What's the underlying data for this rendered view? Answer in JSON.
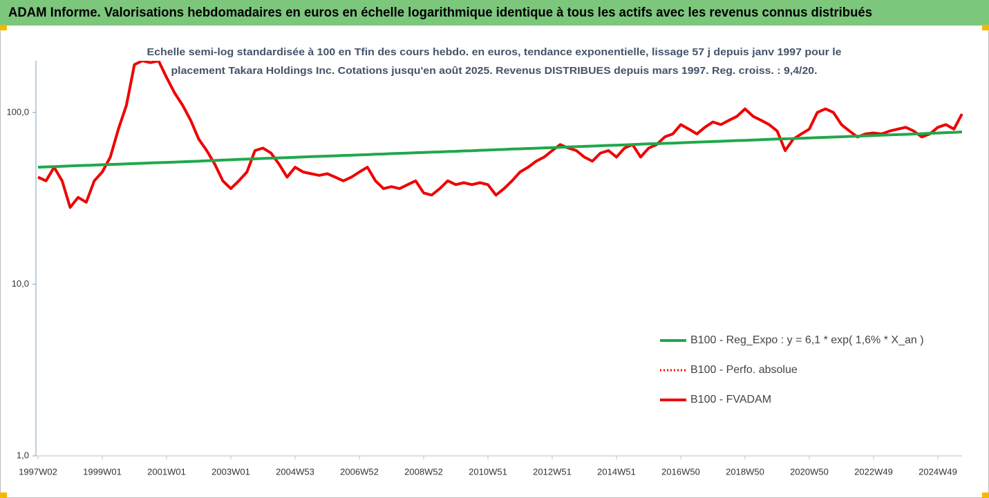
{
  "chart_data": {
    "type": "line",
    "header": "ADAM Informe. Valorisations hebdomadaires en euros en échelle logarithmique identique à tous les actifs avec les revenus connus distribués",
    "title": [
      "Echelle semi-log standardisée à 100 en Tfin des cours hebdo. en euros, tendance exponentielle, lissage 57 j depuis janv 1997 pour le",
      "placement Takara Holdings Inc. Cotations jusqu'en août 2025.  Revenus DISTRIBUES depuis mars 1997. Reg. croiss. : 9,4/20."
    ],
    "log_scale": true,
    "grid": false,
    "legend": "right",
    "ylim": [
      1,
      200
    ],
    "yticks": [
      {
        "value": 1,
        "label": "1,0"
      },
      {
        "value": 10,
        "label": "10,0"
      },
      {
        "value": 100,
        "label": "100,0"
      }
    ],
    "categories": [
      "1997W02",
      null,
      null,
      null,
      null,
      null,
      null,
      null,
      "1999W01",
      null,
      null,
      null,
      null,
      null,
      null,
      null,
      "2001W01",
      null,
      null,
      null,
      null,
      null,
      null,
      null,
      "2003W01",
      null,
      null,
      null,
      null,
      null,
      null,
      null,
      "2004W53",
      null,
      null,
      null,
      null,
      null,
      null,
      null,
      "2006W52",
      null,
      null,
      null,
      null,
      null,
      null,
      null,
      "2008W52",
      null,
      null,
      null,
      null,
      null,
      null,
      null,
      "2010W51",
      null,
      null,
      null,
      null,
      null,
      null,
      null,
      "2012W51",
      null,
      null,
      null,
      null,
      null,
      null,
      null,
      "2014W51",
      null,
      null,
      null,
      null,
      null,
      null,
      null,
      "2016W50",
      null,
      null,
      null,
      null,
      null,
      null,
      null,
      "2018W50",
      null,
      null,
      null,
      null,
      null,
      null,
      null,
      "2020W50",
      null,
      null,
      null,
      null,
      null,
      null,
      null,
      "2022W49",
      null,
      null,
      null,
      null,
      null,
      null,
      null,
      "2024W49",
      null,
      null,
      null
    ],
    "series": [
      {
        "name": "B100 - Reg_Expo : y = 6,1 * exp( 1,6% *  X_an )",
        "color": "#1fa84a",
        "style": "solid",
        "width": 4,
        "values": [
          48.0,
          48.2,
          48.4,
          48.6,
          48.8,
          49.0,
          49.2,
          49.4,
          49.6,
          49.8,
          50.0,
          50.2,
          50.4,
          50.6,
          50.8,
          51.0,
          51.2,
          51.4,
          51.6,
          51.8,
          52.0,
          52.3,
          52.5,
          52.8,
          53.0,
          53.3,
          53.5,
          53.7,
          54.0,
          54.2,
          54.4,
          54.6,
          54.8,
          55.1,
          55.3,
          55.5,
          55.7,
          55.9,
          56.2,
          56.4,
          56.6,
          56.8,
          57.1,
          57.3,
          57.6,
          57.8,
          58.0,
          58.3,
          58.5,
          58.7,
          58.9,
          59.2,
          59.4,
          59.7,
          59.9,
          60.2,
          60.4,
          60.7,
          60.9,
          61.2,
          61.4,
          61.7,
          61.9,
          62.2,
          62.4,
          62.7,
          63.0,
          63.2,
          63.5,
          63.7,
          64.0,
          64.3,
          64.5,
          64.8,
          65.0,
          65.3,
          65.6,
          65.8,
          66.1,
          66.3,
          66.6,
          66.9,
          67.2,
          67.4,
          67.7,
          68.0,
          68.3,
          68.6,
          68.8,
          69.1,
          69.4,
          69.7,
          70.0,
          70.2,
          70.5,
          70.8,
          71.1,
          71.4,
          71.6,
          71.9,
          72.2,
          72.5,
          72.8,
          73.1,
          73.4,
          73.7,
          74.0,
          74.3,
          74.6,
          74.9,
          75.2,
          75.6,
          75.9,
          76.3,
          76.6,
          77.0
        ]
      },
      {
        "name": "B100 - Perfo. absolue",
        "color": "#ff0000",
        "style": "dotted",
        "width": 3,
        "values": [
          42,
          40,
          48,
          40,
          28,
          32,
          30,
          40,
          45,
          55,
          80,
          110,
          190,
          200,
          195,
          200,
          160,
          130,
          110,
          90,
          70,
          60,
          50,
          40,
          36,
          40,
          45,
          60,
          62,
          58,
          50,
          42,
          48,
          45,
          44,
          43,
          44,
          42,
          40,
          42,
          45,
          48,
          40,
          36,
          37,
          36,
          38,
          40,
          34,
          33,
          36,
          40,
          38,
          39,
          38,
          39,
          38,
          33,
          36,
          40,
          45,
          48,
          52,
          55,
          60,
          65,
          62,
          60,
          55,
          52,
          58,
          60,
          55,
          62,
          65,
          55,
          62,
          65,
          72,
          75,
          85,
          80,
          75,
          82,
          88,
          85,
          90,
          95,
          105,
          95,
          90,
          85,
          78,
          60,
          70,
          75,
          80,
          100,
          105,
          100,
          85,
          78,
          72,
          75,
          76,
          75,
          78,
          80,
          82,
          78,
          72,
          75,
          82,
          85,
          80,
          98
        ]
      },
      {
        "name": "B100 - FVADAM",
        "color": "#ee0000",
        "style": "solid",
        "width": 4,
        "values": [
          42,
          40,
          48,
          40,
          28,
          32,
          30,
          40,
          45,
          55,
          80,
          110,
          190,
          200,
          195,
          200,
          160,
          130,
          110,
          90,
          70,
          60,
          50,
          40,
          36,
          40,
          45,
          60,
          62,
          58,
          50,
          42,
          48,
          45,
          44,
          43,
          44,
          42,
          40,
          42,
          45,
          48,
          40,
          36,
          37,
          36,
          38,
          40,
          34,
          33,
          36,
          40,
          38,
          39,
          38,
          39,
          38,
          33,
          36,
          40,
          45,
          48,
          52,
          55,
          60,
          65,
          62,
          60,
          55,
          52,
          58,
          60,
          55,
          62,
          65,
          55,
          62,
          65,
          72,
          75,
          85,
          80,
          75,
          82,
          88,
          85,
          90,
          95,
          105,
          95,
          90,
          85,
          78,
          60,
          70,
          75,
          80,
          100,
          105,
          100,
          85,
          78,
          72,
          75,
          76,
          75,
          78,
          80,
          82,
          78,
          72,
          75,
          82,
          85,
          80,
          98
        ]
      }
    ]
  }
}
